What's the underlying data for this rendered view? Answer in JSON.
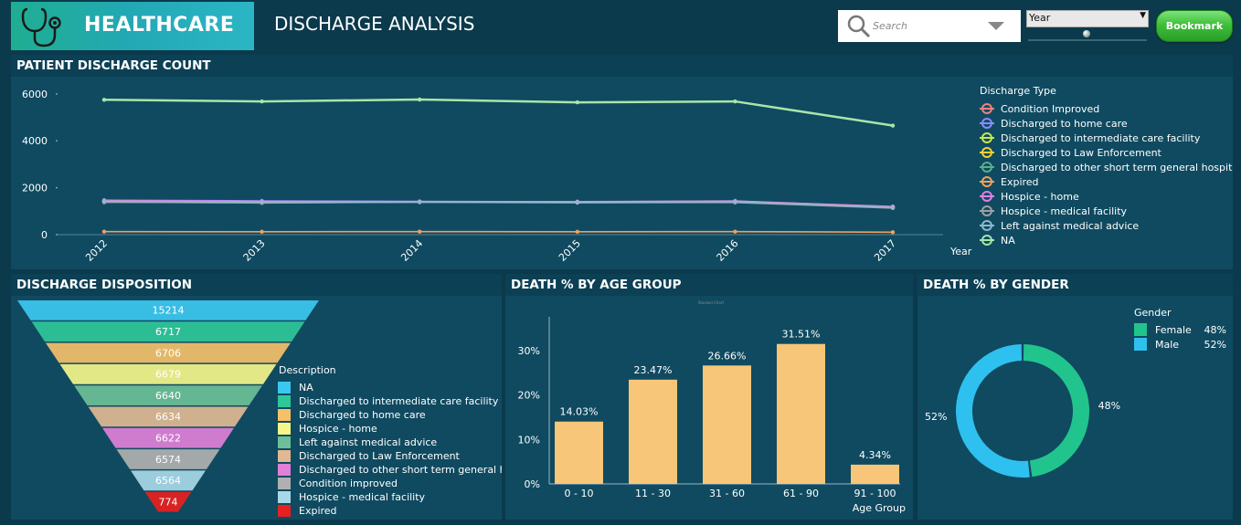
{
  "header": {
    "logo_text": "HEALTHCARE",
    "page_title": "DISCHARGE ANALYSIS",
    "search_placeholder": "Search",
    "year_select_value": "Year",
    "bookmark_label": "Bookmark",
    "colors": {
      "logo_gradient_start": "#1fae92",
      "logo_gradient_end": "#2bb6c5",
      "background": "#0b3a4c",
      "panel": "#0f4a60"
    }
  },
  "panels": {
    "discharge_count_title": "PATIENT DISCHARGE COUNT",
    "disposition_title": "DISCHARGE DISPOSITION",
    "age_title": "DEATH % BY AGE GROUP",
    "gender_title": "DEATH % BY GENDER"
  },
  "chart_data": [
    {
      "type": "line",
      "x": [
        "2012",
        "2013",
        "2014",
        "2015",
        "2016",
        "2017"
      ],
      "xlabel": "Year",
      "ylabel": "",
      "yticks": [
        "0",
        "2000",
        "4000",
        "6000"
      ],
      "ylim": [
        0,
        6500
      ],
      "legend_title": "Discharge Type",
      "legend_position": "right",
      "series": [
        {
          "name": "Condition Improved",
          "color": "#f08080",
          "values": [
            1390,
            1350,
            1390,
            1370,
            1390,
            1180
          ]
        },
        {
          "name": "Discharged to home care",
          "color": "#8b8bff",
          "values": [
            1470,
            1440,
            1420,
            1400,
            1440,
            1170
          ]
        },
        {
          "name": "Discharged to intermediate care facility",
          "color": "#c8e650",
          "values": [
            1440,
            1400,
            1410,
            1400,
            1420,
            1190
          ]
        },
        {
          "name": "Discharged to Law Enforcement",
          "color": "#f5d030",
          "values": [
            1430,
            1410,
            1400,
            1390,
            1400,
            1180
          ]
        },
        {
          "name": "Discharged to other short term general hospital",
          "color": "#5aae8a",
          "values": [
            1400,
            1380,
            1390,
            1380,
            1390,
            1160
          ]
        },
        {
          "name": "Expired",
          "color": "#f0a060",
          "values": [
            130,
            125,
            130,
            125,
            130,
            105
          ]
        },
        {
          "name": "Hospice - home",
          "color": "#e080e0",
          "values": [
            1450,
            1420,
            1410,
            1410,
            1430,
            1200
          ]
        },
        {
          "name": "Hospice - medical facility",
          "color": "#a0a0a0",
          "values": [
            1380,
            1360,
            1380,
            1360,
            1370,
            1130
          ]
        },
        {
          "name": "Left against medical advice",
          "color": "#90b8d0",
          "values": [
            1420,
            1390,
            1400,
            1380,
            1410,
            1150
          ]
        },
        {
          "name": "NA",
          "color": "#a8e6a8",
          "values": [
            5750,
            5680,
            5760,
            5640,
            5680,
            4650
          ]
        }
      ]
    },
    {
      "type": "funnel",
      "legend_title": "Description",
      "categories": [
        "NA",
        "Discharged to intermediate care facility",
        "Discharged to home care",
        "Hospice - home",
        "Left against medical advice",
        "Discharged to Law Enforcement",
        "Discharged to other short term general hospital",
        "Condition improved",
        "Hospice - medical facility",
        "Expired"
      ],
      "values": [
        15214,
        6717,
        6706,
        6679,
        6640,
        6634,
        6622,
        6574,
        6564,
        774
      ],
      "labels": [
        "15214",
        "6717",
        "6706",
        "6679",
        "6640",
        "6634",
        "6622",
        "6574",
        "6564",
        "774"
      ],
      "colors": [
        "#3cc7f0",
        "#2fc79a",
        "#f5c06a",
        "#f5f58a",
        "#6cbf98",
        "#e0b894",
        "#e080d8",
        "#b0b0b0",
        "#a8d8e8",
        "#e82020"
      ]
    },
    {
      "type": "bar",
      "categories": [
        "0 - 10",
        "11 - 30",
        "31 - 60",
        "61 - 90",
        "91 - 100"
      ],
      "values": [
        14.03,
        23.47,
        26.66,
        31.51,
        4.34
      ],
      "labels": [
        "14.03%",
        "23.47%",
        "26.66%",
        "31.51%",
        "4.34%"
      ],
      "xlabel": "Age Group",
      "yticks": [
        "0%",
        "10%",
        "20%",
        "30%"
      ],
      "ylim": [
        0,
        37
      ],
      "color": "#f7c678",
      "title": "Stacked Chart"
    },
    {
      "type": "pie",
      "donut": true,
      "legend_title": "Gender",
      "categories": [
        "Female",
        "Male"
      ],
      "values": [
        48,
        52
      ],
      "labels": [
        "48%",
        "52%"
      ],
      "colors": [
        "#22c48e",
        "#2ec0ee"
      ]
    }
  ]
}
